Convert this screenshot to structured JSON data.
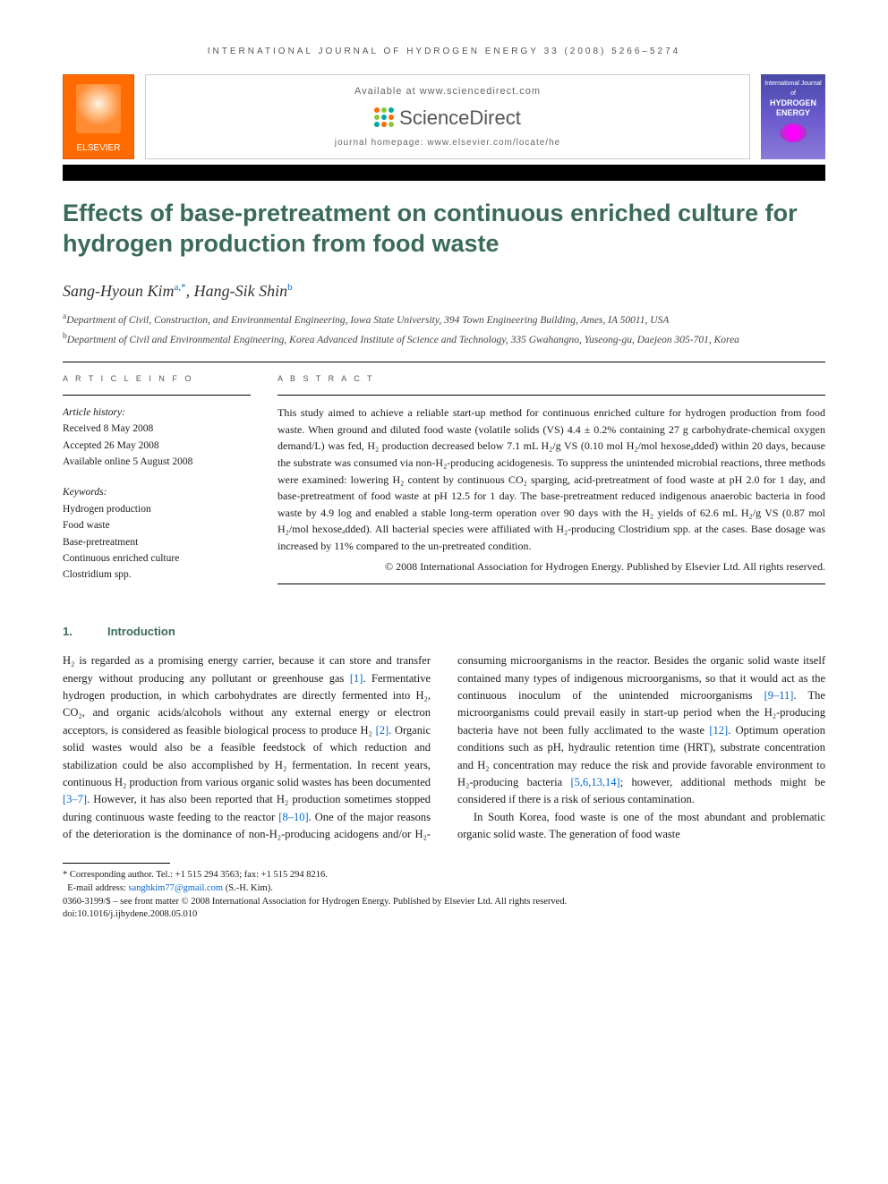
{
  "page_header": "INTERNATIONAL JOURNAL OF HYDROGEN ENERGY 33 (2008) 5266–5274",
  "branding": {
    "elsevier": "ELSEVIER",
    "available": "Available at www.sciencedirect.com",
    "sd_name": "ScienceDirect",
    "sd_dot_colors": [
      "#ff6b00",
      "#8cc63f",
      "#00a99d",
      "#8cc63f",
      "#00a99d",
      "#ff6b00",
      "#00a99d",
      "#ff6b00",
      "#8cc63f"
    ],
    "homepage": "journal homepage: www.elsevier.com/locate/he",
    "cover_top": "International Journal of",
    "cover_title": "HYDROGEN ENERGY"
  },
  "title": "Effects of base-pretreatment on continuous enriched culture for hydrogen production from food waste",
  "authors_html": "Sang-Hyoun Kim<sup>a,*</sup>, Hang-Sik Shin<sup>b</sup>",
  "affiliations": [
    {
      "sup": "a",
      "text": "Department of Civil, Construction, and Environmental Engineering, Iowa State University, 394 Town Engineering Building, Ames, IA 50011, USA"
    },
    {
      "sup": "b",
      "text": "Department of Civil and Environmental Engineering, Korea Advanced Institute of Science and Technology, 335 Gwahangno, Yuseong-gu, Daejeon 305-701, Korea"
    }
  ],
  "info_heading": "A R T I C L E   I N F O",
  "abstract_heading": "A B S T R A C T",
  "history_label": "Article history:",
  "history": [
    "Received 8 May 2008",
    "Accepted 26 May 2008",
    "Available online 5 August 2008"
  ],
  "keywords_label": "Keywords:",
  "keywords": [
    "Hydrogen production",
    "Food waste",
    "Base-pretreatment",
    "Continuous enriched culture",
    "Clostridium spp."
  ],
  "abstract": "This study aimed to achieve a reliable start-up method for continuous enriched culture for hydrogen production from food waste. When ground and diluted food waste (volatile solids (VS) 4.4 ± 0.2% containing 27 g carbohydrate-chemical oxygen demand/L) was fed, H₂ production decreased below 7.1 mL H₂/g VS (0.10 mol H₂/mol hexoseₐdded) within 20 days, because the substrate was consumed via non-H₂-producing acidogenesis. To suppress the unintended microbial reactions, three methods were examined: lowering H₂ content by continuous CO₂ sparging, acid-pretreatment of food waste at pH 2.0 for 1 day, and base-pretreatment of food waste at pH 12.5 for 1 day. The base-pretreatment reduced indigenous anaerobic bacteria in food waste by 4.9 log and enabled a stable long-term operation over 90 days with the H₂ yields of 62.6 mL H₂/g VS (0.87 mol H₂/mol hexoseₐdded). All bacterial species were affiliated with H₂-producing Clostridium spp. at the cases. Base dosage was increased by 11% compared to the un-pretreated condition.",
  "copyright": "© 2008 International Association for Hydrogen Energy. Published by Elsevier Ltd. All rights reserved.",
  "section1_num": "1.",
  "section1_title": "Introduction",
  "intro_p1": "H₂ is regarded as a promising energy carrier, because it can store and transfer energy without producing any pollutant or greenhouse gas [1]. Fermentative hydrogen production, in which carbohydrates are directly fermented into H₂, CO₂, and organic acids/alcohols without any external energy or electron acceptors, is considered as feasible biological process to produce H₂ [2]. Organic solid wastes would also be a feasible feedstock of which reduction and stabilization could be also accomplished by H₂ fermentation. In recent years, continuous H₂ production from various organic solid wastes has been documented [3–7]. However, it has also been reported that H₂ production sometimes stopped during continuous waste feeding to the reactor [8–10]. One of the major reasons of the",
  "intro_p2": "deterioration is the dominance of non-H₂-producing acidogens and/or H₂-consuming microorganisms in the reactor. Besides the organic solid waste itself contained many types of indigenous microorganisms, so that it would act as the continuous inoculum of the unintended microorganisms [9–11]. The microorganisms could prevail easily in start-up period when the H₂-producing bacteria have not been fully acclimated to the waste [12]. Optimum operation conditions such as pH, hydraulic retention time (HRT), substrate concentration and H₂ concentration may reduce the risk and provide favorable environment to H₂-producing bacteria [5,6,13,14]; however, additional methods might be considered if there is a risk of serious contamination.",
  "intro_p3": "In South Korea, food waste is one of the most abundant and problematic organic solid waste. The generation of food waste",
  "footnote_corr": "* Corresponding author. Tel.: +1 515 294 3563; fax: +1 515 294 8216.",
  "footnote_email_label": "E-mail address:",
  "footnote_email": "sanghkim77@gmail.com",
  "footnote_email_tail": "(S.-H. Kim).",
  "footnote_issn": "0360-3199/$ – see front matter © 2008 International Association for Hydrogen Energy. Published by Elsevier Ltd. All rights reserved.",
  "footnote_doi": "doi:10.1016/j.ijhydene.2008.05.010",
  "colors": {
    "heading_green": "#3a6a5a",
    "link_blue": "#0066cc",
    "elsevier_orange": "#ff6b00"
  }
}
